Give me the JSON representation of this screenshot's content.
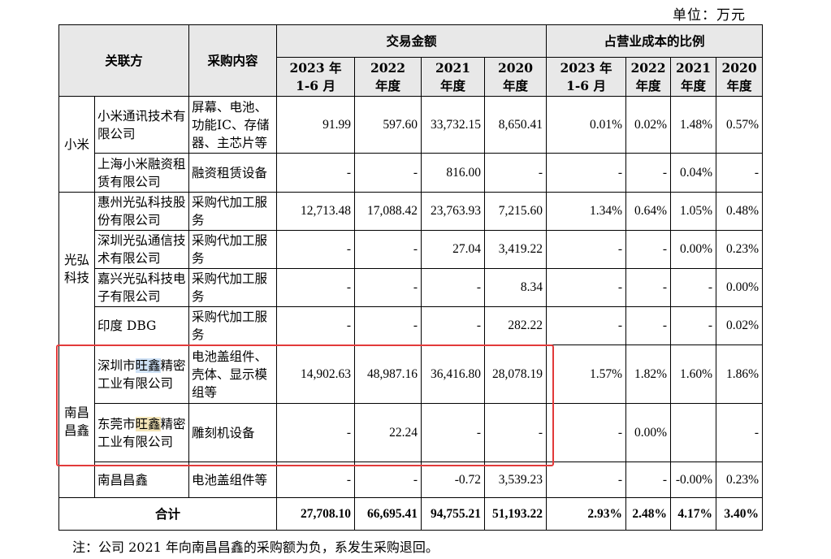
{
  "unit_label": "单位：万元",
  "header": {
    "party": "关联方",
    "content": "采购内容",
    "amount_group": "交易金额",
    "ratio_group": "占营业成本的比例",
    "years": [
      "2023 年\n1-6 月",
      "2022\n年度",
      "2021\n年度",
      "2020\n年度"
    ]
  },
  "groups": {
    "xiaomi": "小米",
    "guanghong": "光弘\n科技",
    "nanchang": "南昌\n昌鑫"
  },
  "rows": [
    {
      "entity": "小米通讯技术有限公司",
      "content": "屏幕、电池、功能IC、存储器、主芯片等",
      "a2023": "91.99",
      "a2022": "597.60",
      "a2021": "33,732.15",
      "a2020": "8,650.41",
      "r2023": "0.01%",
      "r2022": "0.02%",
      "r2021": "1.48%",
      "r2020": "0.57%"
    },
    {
      "entity": "上海小米融资租赁有限公司",
      "content": "融资租赁设备",
      "a2023": "-",
      "a2022": "-",
      "a2021": "816.00",
      "a2020": "-",
      "r2023": "-",
      "r2022": "-",
      "r2021": "0.04%",
      "r2020": "-"
    },
    {
      "entity": "惠州光弘科技股份有限公司",
      "content": "采购代加工服务",
      "a2023": "12,713.48",
      "a2022": "17,088.42",
      "a2021": "23,763.93",
      "a2020": "7,215.60",
      "r2023": "1.34%",
      "r2022": "0.64%",
      "r2021": "1.05%",
      "r2020": "0.48%"
    },
    {
      "entity": "深圳光弘通信技术有限公司",
      "content": "采购代加工服务",
      "a2023": "-",
      "a2022": "-",
      "a2021": "27.04",
      "a2020": "3,419.22",
      "r2023": "-",
      "r2022": "-",
      "r2021": "0.00%",
      "r2020": "0.23%"
    },
    {
      "entity": "嘉兴光弘科技电子有限公司",
      "content": "采购代加工服务",
      "a2023": "-",
      "a2022": "-",
      "a2021": "-",
      "a2020": "8.34",
      "r2023": "-",
      "r2022": "-",
      "r2021": "-",
      "r2020": "0.00%"
    },
    {
      "entity": "印度 DBG",
      "content": "采购代加工服务",
      "a2023": "-",
      "a2022": "-",
      "a2021": "-",
      "a2020": "282.22",
      "r2023": "-",
      "r2022": "-",
      "r2021": "-",
      "r2020": "0.02%"
    },
    {
      "entity_pre": "深圳市",
      "entity_hl": "旺鑫",
      "entity_post": "精密工业有限公司",
      "content": "电池盖组件、壳体、显示模组等",
      "a2023": "14,902.63",
      "a2022": "48,987.16",
      "a2021": "36,416.80",
      "a2020": "28,078.19",
      "r2023": "1.57%",
      "r2022": "1.82%",
      "r2021": "1.60%",
      "r2020": "1.86%"
    },
    {
      "entity_pre": "东莞市",
      "entity_hl": "旺鑫",
      "entity_post": "精密工业有限公司",
      "content": "雕刻机设备",
      "a2023": "-",
      "a2022": "22.24",
      "a2021": "-",
      "a2020": "-",
      "r2023": "-",
      "r2022": "0.00%",
      "r2021": "",
      "r2020": "-"
    },
    {
      "entity": "南昌昌鑫",
      "content": "电池盖组件等",
      "a2023": "-",
      "a2022": "-",
      "a2021": "-0.72",
      "a2020": "3,539.23",
      "r2023": "-",
      "r2022": "-",
      "r2021": "-0.00%",
      "r2020": "0.23%"
    }
  ],
  "total": {
    "label": "合计",
    "a2023": "27,708.10",
    "a2022": "66,695.41",
    "a2021": "94,755.21",
    "a2020": "51,193.22",
    "r2023": "2.93%",
    "r2022": "2.48%",
    "r2021": "4.17%",
    "r2020": "3.40%"
  },
  "note": "注：公司 2021 年向南昌昌鑫的采购额为负，系发生采购退回。",
  "highlight_color": "#e23a3a"
}
